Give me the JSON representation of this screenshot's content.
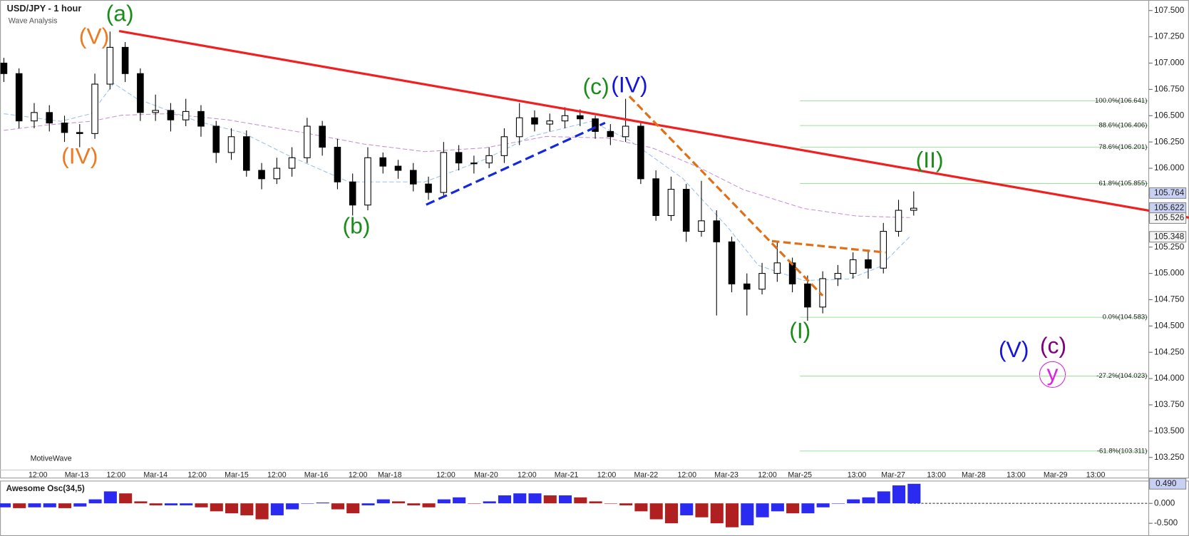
{
  "chart_data": [
    {
      "type": "candlestick",
      "title": "USD/JPY - 1 hour",
      "subtitle": "Wave Analysis",
      "footer": "MotiveWave",
      "up_color": "#ffffff",
      "down_color": "#000000",
      "ylim": [
        103.13,
        107.6
      ],
      "yticks": [
        {
          "value": 107.5,
          "label": "107.500"
        },
        {
          "value": 107.25,
          "label": "107.250"
        },
        {
          "value": 107,
          "label": "107.000"
        },
        {
          "value": 106.75,
          "label": "106.750"
        },
        {
          "value": 106.5,
          "label": "106.500"
        },
        {
          "value": 106.25,
          "label": "106.250"
        },
        {
          "value": 106,
          "label": "106.000"
        },
        {
          "value": 105.75,
          "label": "105.750"
        },
        {
          "value": 105.5,
          "label": "105.500"
        },
        {
          "value": 105.25,
          "label": "105.250"
        },
        {
          "value": 105,
          "label": "105.000"
        },
        {
          "value": 104.75,
          "label": "104.750"
        },
        {
          "value": 104.5,
          "label": "104.500"
        },
        {
          "value": 104.25,
          "label": "104.250"
        },
        {
          "value": 104,
          "label": "104.000"
        },
        {
          "value": 103.75,
          "label": "103.750"
        },
        {
          "value": 103.5,
          "label": "103.500"
        },
        {
          "value": 103.25,
          "label": "103.250"
        }
      ],
      "x_labels": [
        "12:00",
        "Mar-13",
        "12:00",
        "Mar-14",
        "12:00",
        "Mar-15",
        "12:00",
        "Mar-16",
        "12:00",
        "Mar-18",
        "12:00",
        "Mar-20",
        "12:00",
        "Mar-21",
        "12:00",
        "Mar-22",
        "12:00",
        "Mar-23",
        "12:00",
        "Mar-25",
        "13:00",
        "Mar-27",
        "13:00",
        "Mar-28",
        "13:00",
        "Mar-29",
        "13:00"
      ],
      "open": [
        107.0,
        106.9,
        106.45,
        106.53,
        106.43,
        106.34,
        106.33,
        106.8,
        107.15,
        106.9,
        106.53,
        106.55,
        106.46,
        106.54,
        106.4,
        106.15,
        106.3,
        105.98,
        105.9,
        106.0,
        106.1,
        106.4,
        106.2,
        105.87,
        105.65,
        106.1,
        106.02,
        105.98,
        105.85,
        105.77,
        106.15,
        106.05,
        106.05,
        106.12,
        106.3,
        106.48,
        106.42,
        106.45,
        106.5,
        106.47,
        106.35,
        106.3,
        106.4,
        105.9,
        105.55,
        105.8,
        105.4,
        105.5,
        105.3,
        104.9,
        104.85,
        105.0,
        105.1,
        104.9,
        104.68,
        104.95,
        105.0,
        105.13,
        105.05,
        105.4,
        105.6
      ],
      "high": [
        107.05,
        106.95,
        106.62,
        106.6,
        106.5,
        106.42,
        106.9,
        107.3,
        107.2,
        106.95,
        106.7,
        106.62,
        106.66,
        106.6,
        106.45,
        106.38,
        106.36,
        106.05,
        106.1,
        106.2,
        106.48,
        106.45,
        106.28,
        105.95,
        106.2,
        106.15,
        106.08,
        106.05,
        105.92,
        106.25,
        106.22,
        106.12,
        106.2,
        106.38,
        106.62,
        106.55,
        106.52,
        106.58,
        106.56,
        106.5,
        106.42,
        106.66,
        106.45,
        105.98,
        105.92,
        105.85,
        105.88,
        105.6,
        105.35,
        105.0,
        105.1,
        105.3,
        105.15,
        104.98,
        105.02,
        105.08,
        105.2,
        105.22,
        105.48,
        105.7,
        105.78
      ],
      "low": [
        106.82,
        106.38,
        106.38,
        106.35,
        106.25,
        106.2,
        106.28,
        106.75,
        106.82,
        106.45,
        106.45,
        106.35,
        106.4,
        106.3,
        106.05,
        106.08,
        105.92,
        105.8,
        105.85,
        105.92,
        106.05,
        106.12,
        105.8,
        105.55,
        105.6,
        105.95,
        105.9,
        105.78,
        105.7,
        105.72,
        105.98,
        105.95,
        106.0,
        106.05,
        106.22,
        106.35,
        106.35,
        106.38,
        106.4,
        106.28,
        106.22,
        106.25,
        105.85,
        105.5,
        105.5,
        105.3,
        105.35,
        104.6,
        104.82,
        104.6,
        104.8,
        104.92,
        104.82,
        104.55,
        104.62,
        104.88,
        104.95,
        104.95,
        105.0,
        105.35,
        105.55
      ],
      "close": [
        106.9,
        106.45,
        106.53,
        106.43,
        106.34,
        106.33,
        106.8,
        107.15,
        106.9,
        106.53,
        106.55,
        106.46,
        106.54,
        106.4,
        106.15,
        106.3,
        105.98,
        105.9,
        106.0,
        106.1,
        106.4,
        106.2,
        105.87,
        105.65,
        106.1,
        106.02,
        105.98,
        105.85,
        105.77,
        106.15,
        106.05,
        106.05,
        106.12,
        106.3,
        106.48,
        106.42,
        106.45,
        106.5,
        106.47,
        106.35,
        106.3,
        106.4,
        105.9,
        105.55,
        105.8,
        105.4,
        105.5,
        105.3,
        104.9,
        104.85,
        105.0,
        105.1,
        104.9,
        104.68,
        104.95,
        105.0,
        105.13,
        105.05,
        105.4,
        105.6,
        105.62
      ],
      "fib_levels": [
        {
          "value": 106.641,
          "label": "100.0%(106.641)"
        },
        {
          "value": 106.406,
          "label": "88.6%(106.406)"
        },
        {
          "value": 106.201,
          "label": "78.6%(106.201)"
        },
        {
          "value": 105.855,
          "label": "61.8%(105.855)"
        },
        {
          "value": 104.583,
          "label": "0.0%(104.583)"
        },
        {
          "value": 104.023,
          "label": "-27.2%(104.023)"
        },
        {
          "value": 103.311,
          "label": "-61.8%(103.311)"
        }
      ],
      "fib_color": "#9ee09e",
      "price_markers": [
        {
          "value": 105.764,
          "label": "105.764"
        },
        {
          "value": 105.622,
          "label": "105.622"
        },
        {
          "value": 105.526,
          "label": "105.526"
        },
        {
          "value": 105.348,
          "label": "105.348"
        }
      ],
      "annotations": [
        {
          "text": "(a)",
          "color": "#1a8c1a"
        },
        {
          "text": "(V)",
          "color": "#f07820"
        },
        {
          "text": "(IV)",
          "color": "#f07820"
        },
        {
          "text": "(b)",
          "color": "#1a8c1a"
        },
        {
          "text": "(c)",
          "color": "#1a8c1a"
        },
        {
          "text": "(IV)",
          "color": "#1414dc"
        },
        {
          "text": "(I)",
          "color": "#1a8c1a"
        },
        {
          "text": "(II)",
          "color": "#1a8c1a"
        },
        {
          "text": "(V)",
          "color": "#1414dc"
        },
        {
          "text": "(c)",
          "color": "#800080"
        },
        {
          "text": "y",
          "color": "#e020e0"
        }
      ]
    },
    {
      "type": "bar",
      "title": "Awesome Osc(34,5)",
      "up_color": "#2a2af0",
      "down_color": "#b02020",
      "ylim": [
        -0.8,
        0.55
      ],
      "yticks": [
        {
          "value": 0,
          "label": "0.000"
        },
        {
          "value": -0.5,
          "label": "-0.500"
        }
      ],
      "current": {
        "value": 0.49,
        "label": "0.490"
      },
      "values": [
        -0.1,
        -0.12,
        -0.1,
        -0.1,
        -0.12,
        -0.08,
        0.1,
        0.3,
        0.25,
        0.05,
        -0.05,
        -0.05,
        -0.05,
        -0.1,
        -0.2,
        -0.25,
        -0.3,
        -0.4,
        -0.3,
        -0.15,
        0.0,
        0.02,
        -0.15,
        -0.25,
        -0.05,
        0.1,
        0.05,
        -0.05,
        -0.1,
        0.1,
        0.15,
        0.0,
        0.05,
        0.2,
        0.25,
        0.25,
        0.2,
        0.2,
        0.15,
        0.05,
        0.0,
        -0.05,
        -0.2,
        -0.4,
        -0.5,
        -0.3,
        -0.35,
        -0.5,
        -0.6,
        -0.55,
        -0.35,
        -0.2,
        -0.25,
        -0.25,
        -0.1,
        0.0,
        0.1,
        0.15,
        0.3,
        0.45,
        0.49
      ]
    }
  ]
}
